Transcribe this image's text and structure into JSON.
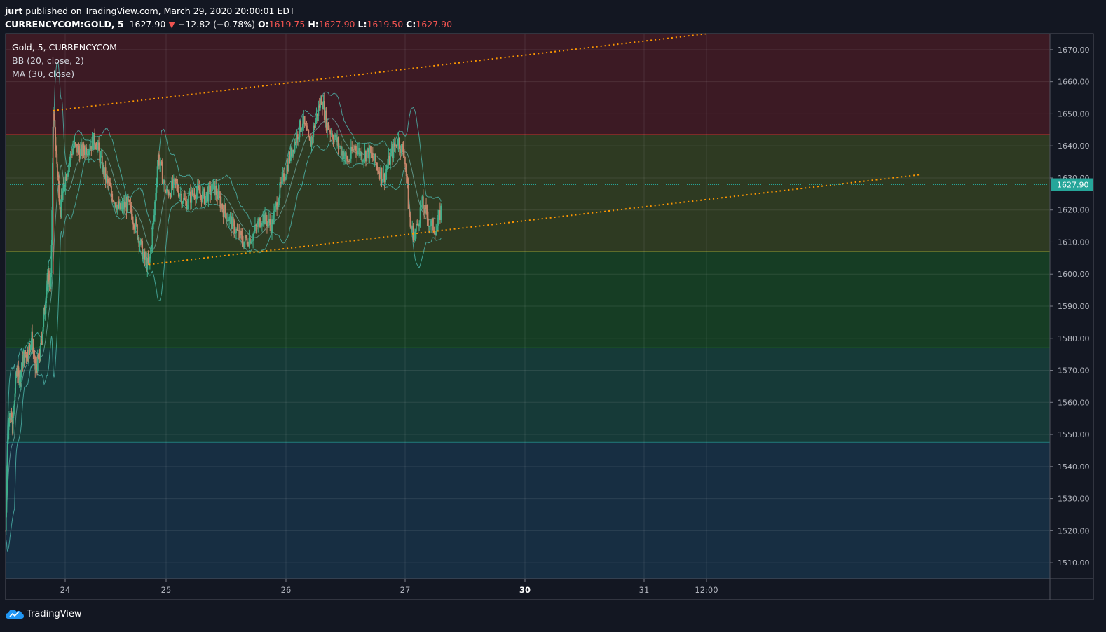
{
  "header": {
    "author": "jurt",
    "published": " published on TradingView.com, March 29, 2020 20:00:01 EDT",
    "symbol": "CURRENCYCOM:GOLD, 5",
    "last": "1627.90",
    "change_arrow": "▼",
    "change": "−12.82 (−0.78%)",
    "o_label": "O:",
    "o_value": "1619.75",
    "h_label": "H:",
    "h_value": "1627.90",
    "l_label": "L:",
    "l_value": "1619.50",
    "c_label": "C:",
    "c_value": "1627.90"
  },
  "legend": {
    "title": "Gold, 5, CURRENCYCOM",
    "bb": "BB (20, close, 2)",
    "ma": "MA (30, close)"
  },
  "footer": {
    "brand": "TradingView"
  },
  "colors": {
    "background": "#131722",
    "up": "#26a69a",
    "down": "#ef5350",
    "candle_wick": "#c8866b",
    "bb_line": "#4db6ac",
    "trendline": "#ff9800",
    "price_badge": "#26a69a"
  },
  "chart_data": {
    "type": "candlestick",
    "symbol": "CURRENCYCOM:GOLD",
    "interval": "5",
    "ylim": [
      1505,
      1675
    ],
    "y_ticks": [
      "1510.00",
      "1520.00",
      "1530.00",
      "1540.00",
      "1550.00",
      "1560.00",
      "1570.00",
      "1580.00",
      "1590.00",
      "1600.00",
      "1610.00",
      "1620.00",
      "1630.00",
      "1640.00",
      "1650.00",
      "1660.00",
      "1670.00"
    ],
    "x_ticks": [
      {
        "label": "24",
        "bold": false
      },
      {
        "label": "25",
        "bold": false
      },
      {
        "label": "26",
        "bold": false
      },
      {
        "label": "27",
        "bold": false
      },
      {
        "label": "30",
        "bold": true
      },
      {
        "label": "31",
        "bold": false
      },
      {
        "label": "12:00",
        "bold": false
      }
    ],
    "last_price": "1627.90",
    "zones": [
      {
        "from": 1643.5,
        "to": 1675,
        "color": "#3c1a24",
        "line": "#c0392b"
      },
      {
        "from": 1607,
        "to": 1643.5,
        "color": "#2e3a22",
        "line": "#aebf3a"
      },
      {
        "from": 1577,
        "to": 1607,
        "color": "#163d24",
        "line": "#2e9e4a"
      },
      {
        "from": 1547.5,
        "to": 1577,
        "color": "#163a38",
        "line": "#26a69a"
      },
      {
        "from": 1505,
        "to": 1547.5,
        "color": "#172e42",
        "line": null
      }
    ],
    "price_path": [
      [
        0.0,
        1520
      ],
      [
        0.03,
        1545
      ],
      [
        0.06,
        1558
      ],
      [
        0.12,
        1552
      ],
      [
        0.18,
        1570
      ],
      [
        0.24,
        1568
      ],
      [
        0.3,
        1574
      ],
      [
        0.38,
        1576
      ],
      [
        0.44,
        1580
      ],
      [
        0.5,
        1570
      ],
      [
        0.58,
        1575
      ],
      [
        0.66,
        1590
      ],
      [
        0.72,
        1600
      ],
      [
        0.76,
        1595
      ],
      [
        0.8,
        1652
      ],
      [
        0.86,
        1635
      ],
      [
        0.92,
        1620
      ],
      [
        1.0,
        1630
      ],
      [
        1.08,
        1640
      ],
      [
        1.16,
        1638
      ],
      [
        1.24,
        1640
      ],
      [
        1.3,
        1642
      ],
      [
        1.38,
        1632
      ],
      [
        1.46,
        1625
      ],
      [
        1.54,
        1620
      ],
      [
        1.62,
        1622
      ],
      [
        1.7,
        1615
      ],
      [
        1.78,
        1605
      ],
      [
        1.83,
        1602
      ],
      [
        1.88,
        1618
      ],
      [
        1.92,
        1637
      ],
      [
        2.0,
        1625
      ],
      [
        2.08,
        1628
      ],
      [
        2.16,
        1622
      ],
      [
        2.24,
        1626
      ],
      [
        2.32,
        1624
      ],
      [
        2.4,
        1627
      ],
      [
        2.48,
        1620
      ],
      [
        2.56,
        1615
      ],
      [
        2.64,
        1610
      ],
      [
        2.72,
        1612
      ],
      [
        2.8,
        1618
      ],
      [
        2.88,
        1615
      ],
      [
        2.94,
        1625
      ],
      [
        3.02,
        1635
      ],
      [
        3.08,
        1642
      ],
      [
        3.14,
        1648
      ],
      [
        3.2,
        1640
      ],
      [
        3.26,
        1650
      ],
      [
        3.3,
        1655
      ],
      [
        3.34,
        1647
      ],
      [
        3.4,
        1643
      ],
      [
        3.46,
        1639
      ],
      [
        3.52,
        1635
      ],
      [
        3.58,
        1640
      ],
      [
        3.64,
        1637
      ],
      [
        3.7,
        1638
      ],
      [
        3.76,
        1634
      ],
      [
        3.82,
        1630
      ],
      [
        3.88,
        1637
      ],
      [
        3.94,
        1642
      ],
      [
        4.0,
        1636
      ],
      [
        4.04,
        1615
      ],
      [
        4.08,
        1612
      ],
      [
        4.14,
        1622
      ],
      [
        4.2,
        1616
      ],
      [
        4.26,
        1614
      ],
      [
        4.3,
        1620
      ]
    ],
    "bb_width": 7,
    "trendlines": [
      {
        "x1": 0.8,
        "y1": 1651,
        "x2": 6.51,
        "y2": 1675
      },
      {
        "x1": 1.83,
        "y1": 1603,
        "x2": 8.21,
        "y2": 1631
      }
    ]
  }
}
